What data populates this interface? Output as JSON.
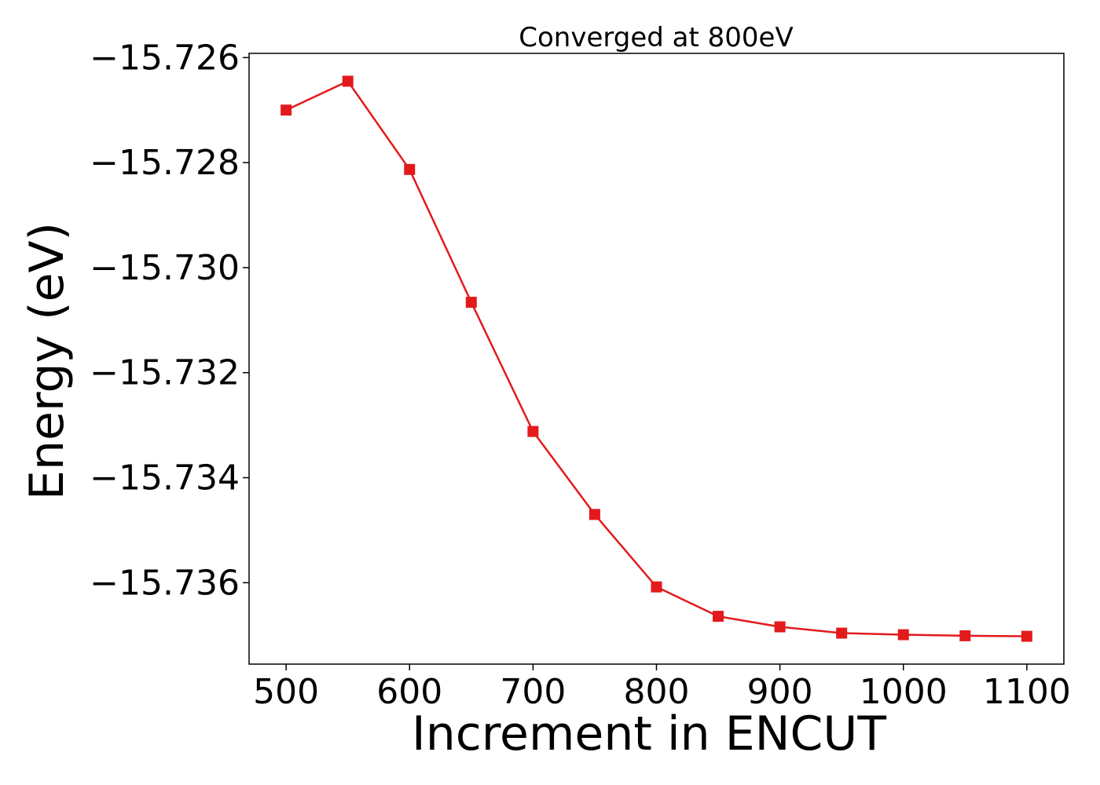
{
  "chart_data": {
    "type": "line",
    "title": "Converged at 800eV",
    "xlabel": "Increment in ENCUT",
    "ylabel": "Energy (eV)",
    "x": [
      500,
      550,
      600,
      650,
      700,
      750,
      800,
      850,
      900,
      950,
      1000,
      1050,
      1100
    ],
    "series": [
      {
        "values": [
          -15.727,
          -15.72645,
          -15.72813,
          -15.73066,
          -15.73312,
          -15.7347,
          -15.73608,
          -15.73664,
          -15.73684,
          -15.73696,
          -15.73699,
          -15.73701,
          -15.73702
        ],
        "color": "#e31a1c",
        "marker": "square"
      }
    ],
    "xlim": [
      470,
      1130
    ],
    "ylim": [
      -15.73755,
      -15.72592
    ],
    "xticks": [
      500,
      600,
      700,
      800,
      900,
      1000,
      1100
    ],
    "yticks": [
      -15.726,
      -15.728,
      -15.73,
      -15.732,
      -15.734,
      -15.736
    ],
    "ytick_labels": [
      "−15.726",
      "−15.728",
      "−15.730",
      "−15.732",
      "−15.734",
      "−15.736"
    ],
    "grid": false,
    "legend": "none"
  }
}
